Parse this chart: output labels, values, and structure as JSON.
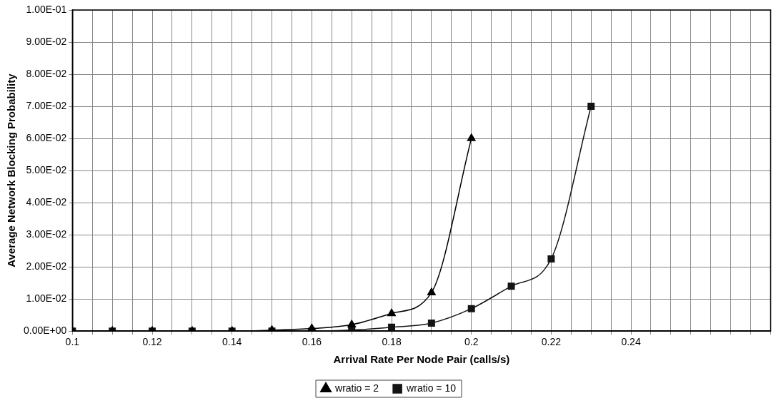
{
  "chart_data": {
    "type": "line",
    "xlabel": "Arrival Rate Per Node Pair (calls/s)",
    "ylabel": "Average Network Blocking Probability",
    "series": [
      {
        "name": "wratio = 2",
        "color": "#000000",
        "marker": "triangle",
        "x": [
          0.1,
          0.11,
          0.12,
          0.13,
          0.14,
          0.15,
          0.16,
          0.17,
          0.18,
          0.19,
          0.2
        ],
        "values": [
          0,
          0,
          0,
          0,
          0,
          0.0003,
          0.0008,
          0.002,
          0.0055,
          0.012,
          0.06
        ]
      },
      {
        "name": "wratio = 10",
        "color": "#141414",
        "marker": "square",
        "x": [
          0.1,
          0.11,
          0.12,
          0.13,
          0.14,
          0.15,
          0.16,
          0.17,
          0.18,
          0.19,
          0.2,
          0.21,
          0.22,
          0.23
        ],
        "values": [
          0,
          0,
          0,
          0,
          0,
          0,
          0,
          0.0003,
          0.0012,
          0.0025,
          0.007,
          0.014,
          0.0225,
          0.07
        ]
      }
    ],
    "xlim": [
      0.1,
      0.275
    ],
    "xticks": [
      0.1,
      {
        "value": 0.105,
        "label": null
      },
      {
        "value": 0.11,
        "label": null
      },
      {
        "value": 0.115,
        "label": null
      },
      0.12,
      {
        "value": 0.125,
        "label": null
      },
      {
        "value": 0.13,
        "label": null
      },
      {
        "value": 0.135,
        "label": null
      },
      0.14,
      {
        "value": 0.145,
        "label": null
      },
      {
        "value": 0.15,
        "label": null
      },
      {
        "value": 0.155,
        "label": null
      },
      0.16,
      {
        "value": 0.165,
        "label": null
      },
      {
        "value": 0.17,
        "label": null
      },
      {
        "value": 0.175,
        "label": null
      },
      0.18,
      {
        "value": 0.185,
        "label": null
      },
      {
        "value": 0.19,
        "label": null
      },
      {
        "value": 0.195,
        "label": null
      },
      0.2,
      {
        "value": 0.205,
        "label": null
      },
      {
        "value": 0.21,
        "label": null
      },
      {
        "value": 0.215,
        "label": null
      },
      0.22,
      {
        "value": 0.225,
        "label": null
      },
      {
        "value": 0.23,
        "label": null
      },
      {
        "value": 0.235,
        "label": null
      },
      0.24,
      {
        "value": 0.245,
        "label": null
      },
      {
        "value": 0.25,
        "label": null
      },
      {
        "value": 0.255,
        "label": null
      },
      {
        "value": 0.26,
        "label": null
      },
      {
        "value": 0.265,
        "label": null
      },
      {
        "value": 0.27,
        "label": null
      },
      {
        "value": 0.275,
        "label": null
      }
    ],
    "ylim": [
      0,
      0.1
    ],
    "yticks": [
      {
        "value": 0,
        "label": "0.00E+00"
      },
      {
        "value": 0.01,
        "label": "1.00E-02"
      },
      {
        "value": 0.02,
        "label": "2.00E-02"
      },
      {
        "value": 0.03,
        "label": "3.00E-02"
      },
      {
        "value": 0.04,
        "label": "4.00E-02"
      },
      {
        "value": 0.05,
        "label": "5.00E-02"
      },
      {
        "value": 0.06,
        "label": "6.00E-02"
      },
      {
        "value": 0.07,
        "label": "7.00E-02"
      },
      {
        "value": 0.08,
        "label": "8.00E-02"
      },
      {
        "value": 0.09,
        "label": "9.00E-02"
      },
      {
        "value": 0.1,
        "label": "1.00E-01"
      }
    ],
    "grid": true,
    "legend": "bottom",
    "line_style": "solid"
  }
}
